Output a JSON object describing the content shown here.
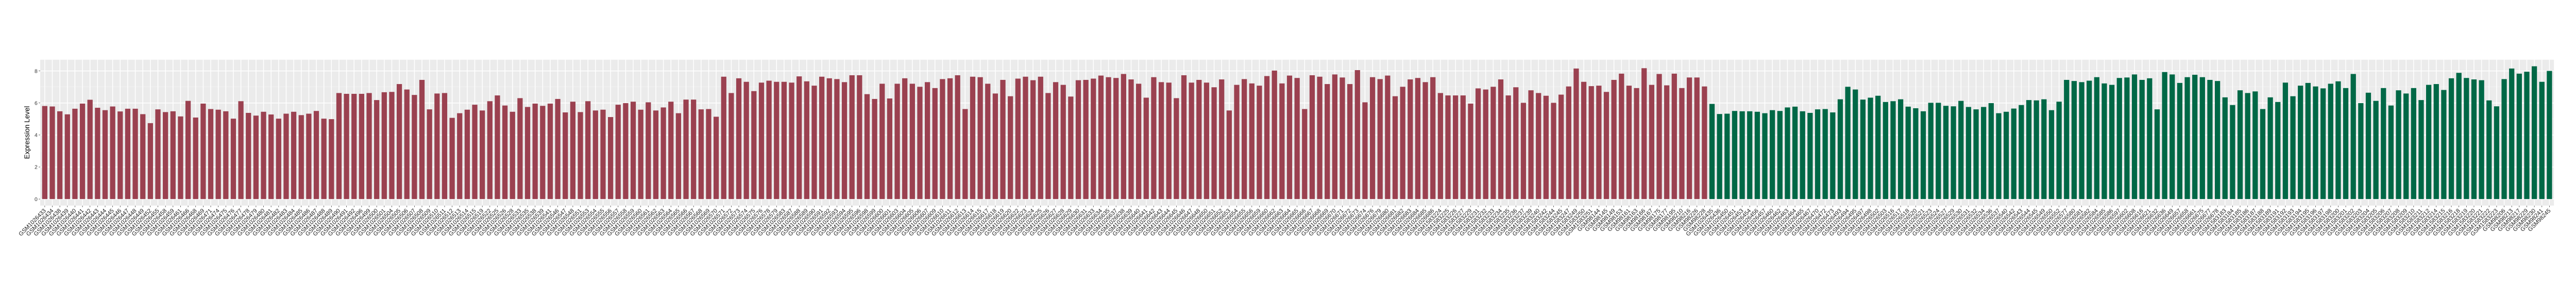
{
  "chart_data": {
    "type": "bar",
    "title": "",
    "xlabel": "",
    "ylabel": "Expression Level",
    "ylim": [
      -0.41,
      8.7
    ],
    "yticks": [
      0,
      2,
      4,
      6,
      8
    ],
    "grid": true,
    "legend": "none",
    "panel_background": "#EBEBEB",
    "series": [
      {
        "color": "#9B4150",
        "categories": [
          "GSM1026433",
          "GSM1026434",
          "GSM1026438",
          "GSM1026439",
          "GSM1026440",
          "GSM1026441",
          "GSM1026442",
          "GSM1026443",
          "GSM1026444",
          "GSM1026445",
          "GSM1026446",
          "GSM1026447",
          "GSM1026448",
          "GSM1026449",
          "GSM1026452",
          "GSM1026455",
          "GSM1026458",
          "GSM1026459",
          "GSM1026461",
          "GSM1026466",
          "GSM1026468",
          "GSM1026469",
          "GSM1026471",
          "GSM1026474",
          "GSM1026475",
          "GSM1026476",
          "GSM1026477",
          "GSM1026478",
          "GSM1026479",
          "GSM1026480",
          "GSM1026481",
          "GSM1026482",
          "GSM1026483",
          "GSM1026484",
          "GSM1026485",
          "GSM1026486",
          "GSM1026487",
          "GSM1026488",
          "GSM1026489",
          "GSM1026490",
          "GSM1026491",
          "GSM1026492",
          "GSM1026496",
          "GSM1026499",
          "GSM1026500",
          "GSM1026501",
          "GSM1026504",
          "GSM1026505",
          "GSM1026506",
          "GSM1026507",
          "GSM1026508",
          "GSM1026509",
          "GSM1026510",
          "GSM1026511",
          "GSM1026512",
          "GSM1026513",
          "GSM1026514",
          "GSM1026515",
          "GSM1026519",
          "GSM1026522",
          "GSM1026525",
          "GSM1026526",
          "GSM1026528",
          "GSM1026533",
          "GSM1026535",
          "GSM1026538",
          "GSM1026539",
          "GSM1026541",
          "GSM1026546",
          "GSM1026547",
          "GSM1026548",
          "GSM1026551",
          "GSM1026553",
          "GSM1026554",
          "GSM1026555",
          "GSM1026556",
          "GSM1026557",
          "GSM1026558",
          "GSM1026559",
          "GSM1026560",
          "GSM1026561",
          "GSM1026562",
          "GSM1026563",
          "GSM1026564",
          "GSM1026565",
          "GSM1026566",
          "GSM1026567",
          "GSM1026568",
          "GSM1026569",
          "GSM1026570",
          "GSM1026571",
          "GSM1026572",
          "GSM1026573",
          "GSM1026574",
          "GSM1026575",
          "GSM1026576",
          "GSM1026578",
          "GSM1026579",
          "GSM1026583",
          "GSM1026587",
          "GSM1026588",
          "GSM1026589",
          "GSM1026590",
          "GSM1026591",
          "GSM1026592",
          "GSM1026593",
          "GSM1026594",
          "GSM1026595",
          "GSM1026596",
          "GSM1026598",
          "GSM1026599",
          "GSM1026600",
          "GSM1026601",
          "GSM1026603",
          "GSM1026604",
          "GSM1026605",
          "GSM1026606",
          "GSM1026607",
          "GSM1026609",
          "GSM1026610",
          "GSM1026611",
          "GSM1026612",
          "GSM1026613",
          "GSM1026614",
          "GSM1026615",
          "GSM1026617",
          "GSM1026618",
          "GSM1026619",
          "GSM1026620",
          "GSM1026622",
          "GSM1026623",
          "GSM1026624",
          "GSM1026625",
          "GSM1026626",
          "GSM1026627",
          "GSM1026628",
          "GSM1026629",
          "GSM1026630",
          "GSM1026631",
          "GSM1026633",
          "GSM1026634",
          "GSM1026635",
          "GSM1026637",
          "GSM1026638",
          "GSM1026639",
          "GSM1026640",
          "GSM1026641",
          "GSM1026642",
          "GSM1026643",
          "GSM1026644",
          "GSM1026645",
          "GSM1026646",
          "GSM1026647",
          "GSM1026648",
          "GSM1026650",
          "GSM1026651",
          "GSM1026652",
          "GSM1026653",
          "GSM1026654",
          "GSM1026655",
          "GSM1026656",
          "GSM1026659",
          "GSM1026660",
          "GSM1026662",
          "GSM1026663",
          "GSM1026664",
          "GSM1026665",
          "GSM1026666",
          "GSM1026667",
          "GSM1026668",
          "GSM1026669",
          "GSM1026670",
          "GSM1026671",
          "GSM1026672",
          "GSM1026673",
          "GSM1026674",
          "GSM1026676",
          "GSM1026679",
          "GSM1026680",
          "GSM1026681",
          "GSM1026682",
          "GSM1026683",
          "GSM1026684",
          "GSM1026685",
          "GSM1026686",
          "GSM1583224",
          "GSM1583225",
          "GSM1583226",
          "GSM1583227",
          "GSM1583229",
          "GSM1583231",
          "GSM1583232",
          "GSM1583233",
          "GSM1583234",
          "GSM1583235",
          "GSM1583236",
          "GSM1583237",
          "GSM1583239",
          "GSM1583240",
          "GSM1583242",
          "GSM1583244",
          "GSM1583245",
          "GSM1583247",
          "GSM1583249",
          "GSM1583250",
          "GSM1583251",
          "GSM98144",
          "GSM98145",
          "GSM98149",
          "GSM98153",
          "GSM98161",
          "GSM98163",
          "GSM98166",
          "GSM98167",
          "GSM98175",
          "GSM98177",
          "GSM98195",
          "GSM98210",
          "GSM98216",
          "GSM98226",
          "GSM98228"
        ],
        "values": [
          5.81,
          5.78,
          5.48,
          5.29,
          5.64,
          5.96,
          6.2,
          5.7,
          5.55,
          5.78,
          5.47,
          5.64,
          5.64,
          5.3,
          4.74,
          5.6,
          5.43,
          5.48,
          5.16,
          6.13,
          5.09,
          5.96,
          5.62,
          5.58,
          5.48,
          5.02,
          6.11,
          5.38,
          5.21,
          5.45,
          5.28,
          5.02,
          5.33,
          5.45,
          5.24,
          5.33,
          5.5,
          5.02,
          4.99,
          6.62,
          6.57,
          6.57,
          6.57,
          6.62,
          6.18,
          6.67,
          6.69,
          7.18,
          6.84,
          6.5,
          7.44,
          5.6,
          6.59,
          6.62,
          5.07,
          5.36,
          5.58,
          5.89,
          5.53,
          6.11,
          6.47,
          5.84,
          5.45,
          6.3,
          5.75,
          5.96,
          5.82,
          5.96,
          6.25,
          5.41,
          6.08,
          5.43,
          6.11,
          5.53,
          5.58,
          5.12,
          5.89,
          5.99,
          6.08,
          5.58,
          6.04,
          5.53,
          5.72,
          6.08,
          5.36,
          6.21,
          6.21,
          5.6,
          5.62,
          5.14,
          7.64,
          6.62,
          7.54,
          7.32,
          6.74,
          7.27,
          7.39,
          7.32,
          7.32,
          7.27,
          7.66,
          7.35,
          7.08,
          7.64,
          7.54,
          7.49,
          7.3,
          7.73,
          7.73,
          6.55,
          6.25,
          7.2,
          6.28,
          7.2,
          7.54,
          7.2,
          7.01,
          7.3,
          6.93,
          7.49,
          7.54,
          7.73,
          5.62,
          7.64,
          7.61,
          7.2,
          6.59,
          7.44,
          6.42,
          7.52,
          7.64,
          7.42,
          7.64,
          6.62,
          7.3,
          7.13,
          6.4,
          7.42,
          7.44,
          7.52,
          7.71,
          7.61,
          7.56,
          7.81,
          7.47,
          7.2,
          6.33,
          7.61,
          7.3,
          7.27,
          6.3,
          7.73,
          7.27,
          7.44,
          7.27,
          6.98,
          7.47,
          5.53,
          7.13,
          7.49,
          7.22,
          7.08,
          7.68,
          8.02,
          7.22,
          7.71,
          7.56,
          5.62,
          7.73,
          7.64,
          7.18,
          7.78,
          7.59,
          7.18,
          8.05,
          6.04,
          7.61,
          7.49,
          7.71,
          6.42,
          7.01,
          7.47,
          7.56,
          7.3,
          7.61,
          6.62,
          6.47,
          6.47,
          6.47,
          5.96,
          6.91,
          6.84,
          7.01,
          7.47,
          6.47,
          6.98,
          6.01,
          6.79,
          6.62,
          6.45,
          6.01,
          6.52,
          7.03,
          8.15,
          7.32,
          7.05,
          7.08,
          6.69,
          7.44,
          7.83,
          7.08,
          6.93,
          8.17,
          7.13,
          7.81,
          7.1,
          7.83,
          6.93,
          7.59,
          7.59,
          7.03
        ]
      },
      {
        "color": "#006846",
        "categories": [
          "GSM1026435",
          "GSM1026436",
          "GSM1026450",
          "GSM1026451",
          "GSM1026453",
          "GSM1026454",
          "GSM1026456",
          "GSM1026457",
          "GSM1026460",
          "GSM1026462",
          "GSM1026463",
          "GSM1026464",
          "GSM1026465",
          "GSM1026467",
          "GSM1026470",
          "GSM1026472",
          "GSM1026473",
          "GSM1026493",
          "GSM1026494",
          "GSM1026495",
          "GSM1026497",
          "GSM1026498",
          "GSM1026502",
          "GSM1026503",
          "GSM1026516",
          "GSM1026517",
          "GSM1026518",
          "GSM1026520",
          "GSM1026521",
          "GSM1026523",
          "GSM1026524",
          "GSM1026527",
          "GSM1026529",
          "GSM1026530",
          "GSM1026531",
          "GSM1026532",
          "GSM1026534",
          "GSM1026536",
          "GSM1026537",
          "GSM1026540",
          "GSM1026542",
          "GSM1026543",
          "GSM1026544",
          "GSM1026545",
          "GSM1026549",
          "GSM1026550",
          "GSM1026552",
          "GSM1026577",
          "GSM1026580",
          "GSM1026581",
          "GSM1026582",
          "GSM1026584",
          "GSM1026585",
          "GSM1026586",
          "GSM1026597",
          "GSM1026602",
          "GSM1026608",
          "GSM1026616",
          "GSM1026621",
          "GSM1026632",
          "GSM1026636",
          "GSM1026649",
          "GSM1026657",
          "GSM1026658",
          "GSM1026661",
          "GSM1026675",
          "GSM1026677",
          "GSM1026678",
          "GSM1583183",
          "GSM1583184",
          "GSM1583185",
          "GSM1583186",
          "GSM1583187",
          "GSM1583188",
          "GSM1583189",
          "GSM1583191",
          "GSM1583192",
          "GSM1583193",
          "GSM1583194",
          "GSM1583195",
          "GSM1583196",
          "GSM1583197",
          "GSM1583198",
          "GSM1583200",
          "GSM1583201",
          "GSM1583202",
          "GSM1583203",
          "GSM1583204",
          "GSM1583205",
          "GSM1583206",
          "GSM1583207",
          "GSM1583208",
          "GSM1583209",
          "GSM1583210",
          "GSM1583211",
          "GSM1583212",
          "GSM1583214",
          "GSM1583215",
          "GSM1583216",
          "GSM1583218",
          "GSM1583219",
          "GSM1583220",
          "GSM1583221",
          "GSM1583222",
          "GSM1583223",
          "GSM98206",
          "GSM98213",
          "GSM98217",
          "GSM98229",
          "GSM98230",
          "GSM98241",
          "GSM98245"
        ],
        "values": [
          5.94,
          5.31,
          5.33,
          5.5,
          5.48,
          5.48,
          5.45,
          5.36,
          5.55,
          5.5,
          5.72,
          5.77,
          5.48,
          5.38,
          5.6,
          5.62,
          5.41,
          6.23,
          7.01,
          6.84,
          6.21,
          6.33,
          6.45,
          6.06,
          6.11,
          6.23,
          5.77,
          5.67,
          5.48,
          6.01,
          6.01,
          5.82,
          5.79,
          6.13,
          5.75,
          5.6,
          5.75,
          5.99,
          5.36,
          5.45,
          5.65,
          5.87,
          6.18,
          6.16,
          6.23,
          5.55,
          6.08,
          7.44,
          7.37,
          7.3,
          7.39,
          7.61,
          7.22,
          7.13,
          7.56,
          7.59,
          7.78,
          7.44,
          7.54,
          5.6,
          7.93,
          7.78,
          7.25,
          7.61,
          7.76,
          7.61,
          7.44,
          7.37,
          6.35,
          5.87,
          6.79,
          6.62,
          6.72,
          5.62,
          6.35,
          6.06,
          7.27,
          6.42,
          7.08,
          7.25,
          7.03,
          6.91,
          7.2,
          7.35,
          6.93,
          7.81,
          5.99,
          6.64,
          6.13,
          6.93,
          5.84,
          6.79,
          6.59,
          6.93,
          6.18,
          7.13,
          7.18,
          6.81,
          7.54,
          7.88,
          7.56,
          7.47,
          7.42,
          6.16,
          5.79,
          7.49,
          8.15,
          7.83,
          7.95,
          8.29,
          7.32,
          8.0
        ]
      }
    ]
  }
}
